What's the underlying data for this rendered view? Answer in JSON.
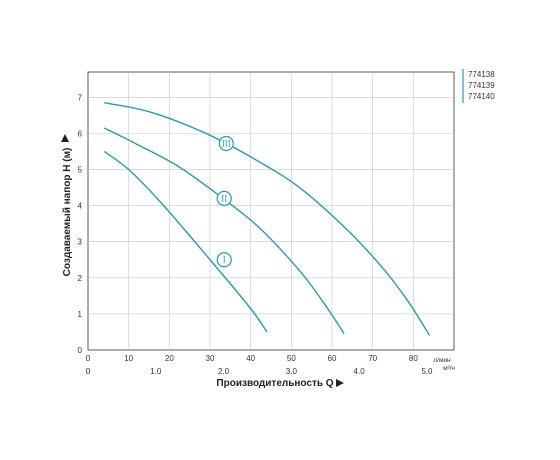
{
  "chart_data": {
    "type": "line",
    "ylabel": "Создаваемый напор H (м)",
    "xlabel": "Производительность Q",
    "x_unit_top": "л/мин",
    "x_unit_bottom": "м³/ч",
    "x_ticks_top": [
      "0",
      "10",
      "20",
      "30",
      "40",
      "50",
      "60",
      "70",
      "80"
    ],
    "x_ticks_bottom": [
      "0",
      "1.0",
      "2.0",
      "3.0",
      "4.0",
      "5.0"
    ],
    "y_ticks": [
      "0",
      "1",
      "2",
      "3",
      "4",
      "5",
      "6",
      "7"
    ],
    "xlim": [
      0,
      90
    ],
    "ylim": [
      0,
      7.7
    ],
    "grid": true,
    "legend": [
      "774138",
      "774139",
      "774140"
    ],
    "series": [
      {
        "name": "I",
        "x": [
          4,
          10,
          17,
          24,
          30,
          36,
          41,
          44
        ],
        "y": [
          5.5,
          5.0,
          4.2,
          3.3,
          2.5,
          1.7,
          1.0,
          0.5
        ],
        "label_at": [
          33.5,
          2.5
        ]
      },
      {
        "name": "II",
        "x": [
          4,
          12,
          22,
          32,
          42,
          52,
          58,
          63
        ],
        "y": [
          6.15,
          5.7,
          5.1,
          4.3,
          3.4,
          2.2,
          1.3,
          0.45
        ],
        "label_at": [
          33.5,
          4.2
        ]
      },
      {
        "name": "III",
        "x": [
          4,
          15,
          28,
          40,
          52,
          64,
          73,
          79,
          84
        ],
        "y": [
          6.85,
          6.6,
          6.05,
          5.35,
          4.5,
          3.3,
          2.2,
          1.3,
          0.4
        ],
        "label_at": [
          34,
          5.72
        ]
      }
    ],
    "colors": {
      "curve": "#2a9ab0",
      "grid": "#c8c8c8",
      "axis": "#333333"
    }
  }
}
